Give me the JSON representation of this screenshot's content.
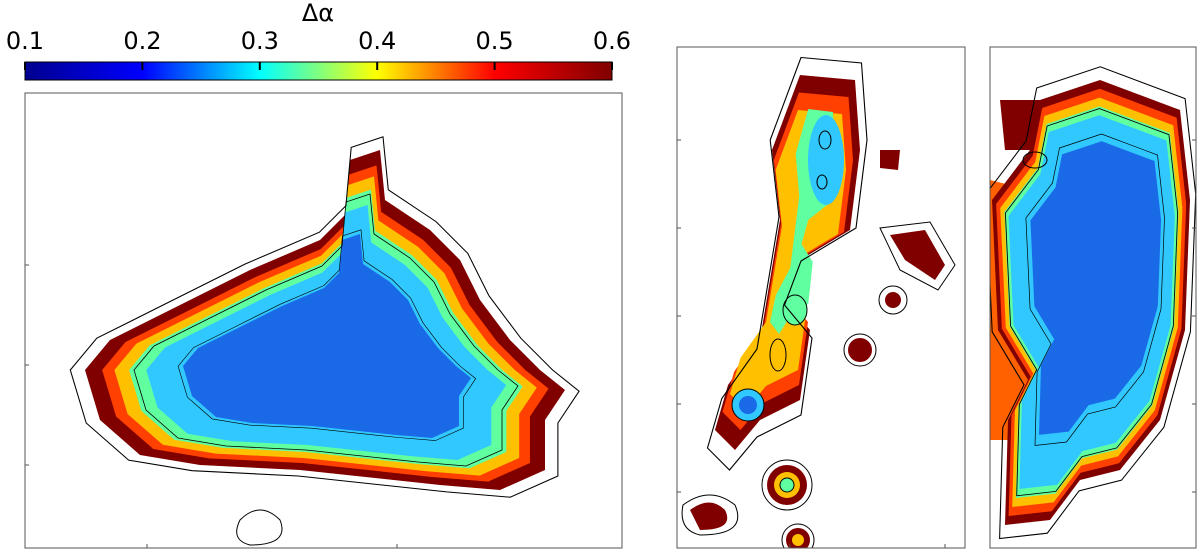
{
  "chart_data": {
    "type": "colorbar",
    "title": "Δα",
    "clim": [
      0.1,
      0.6
    ],
    "ticks": [
      0.1,
      0.2,
      0.3,
      0.4,
      0.5,
      0.6
    ],
    "colors": [
      "#00008f",
      "#0000ff",
      "#00ffff",
      "#ffff00",
      "#ff0000",
      "#800000"
    ]
  }
}
